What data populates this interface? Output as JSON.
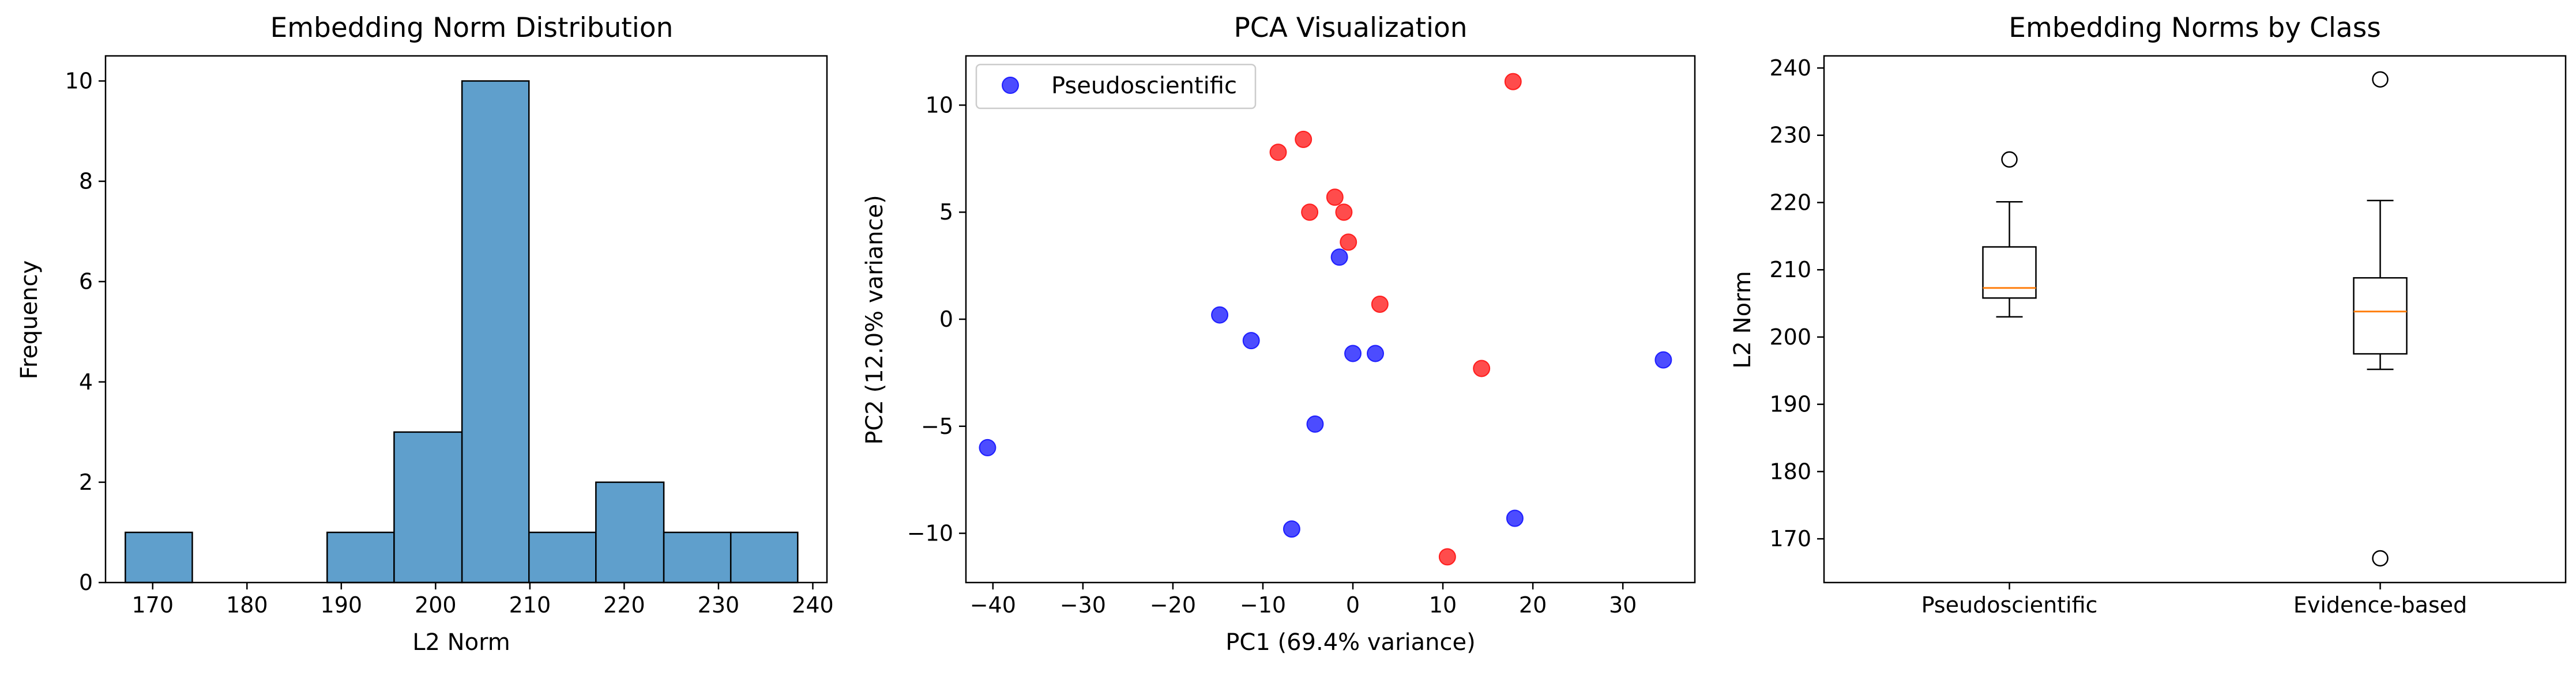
{
  "colors": {
    "hist_fill": "#5f9fcc",
    "hist_edge": "#000000",
    "series_a": "#0000ff",
    "series_b": "#ff0000",
    "median": "#ff7f0e"
  },
  "chart_data": [
    {
      "type": "bar",
      "title": "Embedding Norm Distribution",
      "xlabel": "L2 Norm",
      "ylabel": "Frequency",
      "xlim": [
        165,
        241.5
      ],
      "ylim": [
        0,
        10.5
      ],
      "xticks": [
        170,
        180,
        190,
        200,
        210,
        220,
        230,
        240
      ],
      "yticks": [
        0,
        2,
        4,
        6,
        8,
        10
      ],
      "bins": [
        {
          "start": 167.1,
          "end": 174.2,
          "count": 1
        },
        {
          "start": 174.2,
          "end": 181.4,
          "count": 0
        },
        {
          "start": 181.4,
          "end": 188.5,
          "count": 0
        },
        {
          "start": 188.5,
          "end": 195.6,
          "count": 1
        },
        {
          "start": 195.6,
          "end": 202.8,
          "count": 3
        },
        {
          "start": 202.8,
          "end": 209.9,
          "count": 10
        },
        {
          "start": 209.9,
          "end": 217.0,
          "count": 1
        },
        {
          "start": 217.0,
          "end": 224.2,
          "count": 2
        },
        {
          "start": 224.2,
          "end": 231.3,
          "count": 1
        },
        {
          "start": 231.3,
          "end": 238.4,
          "count": 1
        }
      ]
    },
    {
      "type": "scatter",
      "title": "PCA Visualization",
      "xlabel": "PC1 (69.4% variance)",
      "ylabel": "PC2 (12.0% variance)",
      "xlim": [
        -43,
        38
      ],
      "ylim": [
        -12.3,
        12.3
      ],
      "xticks": [
        -40,
        -30,
        -20,
        -10,
        0,
        10,
        20,
        30
      ],
      "yticks": [
        -10,
        -5,
        0,
        5,
        10
      ],
      "legend_position": "top-left",
      "series": [
        {
          "name": "Pseudoscientific",
          "color": "#0000ff",
          "points": [
            [
              -1.5,
              2.9
            ],
            [
              -14.8,
              0.2
            ],
            [
              -11.3,
              -1.0
            ],
            [
              0.0,
              -1.6
            ],
            [
              2.5,
              -1.6
            ],
            [
              -4.2,
              -4.9
            ],
            [
              -40.6,
              -6.0
            ],
            [
              -6.8,
              -9.8
            ],
            [
              18.0,
              -9.3
            ],
            [
              34.5,
              -1.9
            ]
          ]
        },
        {
          "color": "#ff0000",
          "points": [
            [
              17.8,
              11.1
            ],
            [
              -5.5,
              8.4
            ],
            [
              -8.3,
              7.8
            ],
            [
              -2.0,
              5.7
            ],
            [
              -4.8,
              5.0
            ],
            [
              -1.0,
              5.0
            ],
            [
              -0.5,
              3.6
            ],
            [
              3.0,
              0.7
            ],
            [
              14.3,
              -2.3
            ],
            [
              10.5,
              -11.1
            ]
          ]
        }
      ]
    },
    {
      "type": "box",
      "title": "Embedding Norms by Class",
      "ylabel": "L2 Norm",
      "categories": [
        "Pseudoscientific",
        "Evidence-based"
      ],
      "ylim": [
        163.5,
        241.8
      ],
      "yticks": [
        170,
        180,
        190,
        200,
        210,
        220,
        230,
        240
      ],
      "boxes": [
        {
          "whisker_low": 203.0,
          "q1": 205.8,
          "median": 207.3,
          "q3": 213.4,
          "whisker_high": 220.1,
          "outliers": [
            226.4
          ]
        },
        {
          "whisker_low": 195.2,
          "q1": 197.5,
          "median": 203.8,
          "q3": 208.8,
          "whisker_high": 220.3,
          "outliers": [
            238.3,
            167.1
          ]
        }
      ]
    }
  ]
}
